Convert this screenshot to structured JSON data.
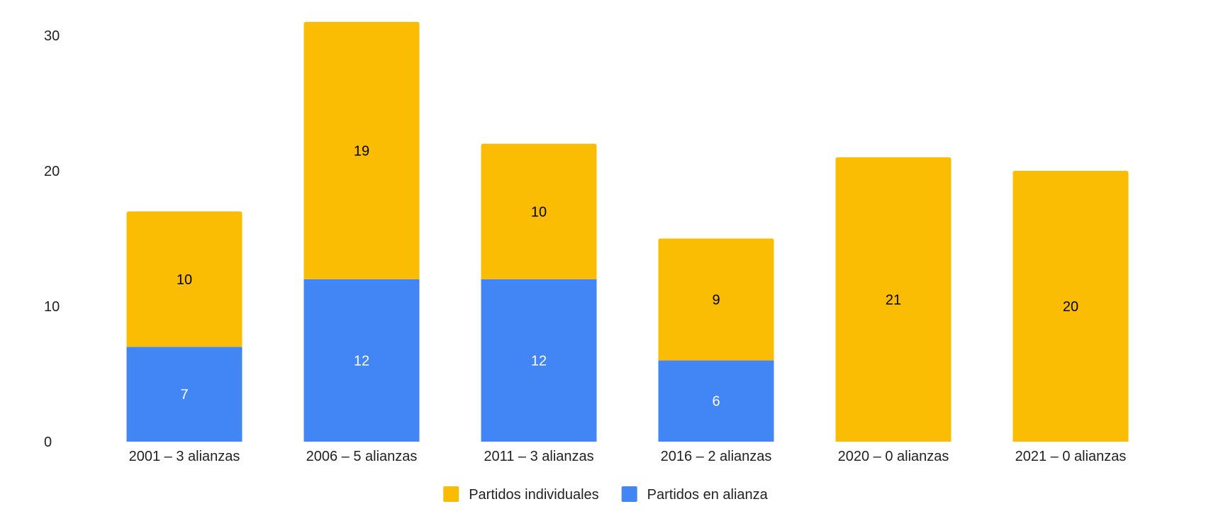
{
  "chart_data": {
    "type": "bar",
    "stacked": true,
    "title": "",
    "xlabel": "",
    "ylabel": "",
    "categories": [
      "2001 – 3 alianzas",
      "2006 – 5 alianzas",
      "2011 – 3 alianzas",
      "2016 – 2 alianzas",
      "2020 – 0 alianzas",
      "2021 – 0 alianzas"
    ],
    "series": [
      {
        "name": "Partidos en alianza",
        "color": "#4285F4",
        "label_color": "#ffffff",
        "values": [
          7,
          12,
          12,
          6,
          0,
          0
        ]
      },
      {
        "name": "Partidos individuales",
        "color": "#FBBC04",
        "label_color": "#000000",
        "values": [
          10,
          19,
          10,
          9,
          21,
          20
        ]
      }
    ],
    "ylim": [
      0,
      30
    ],
    "yticks": [
      0,
      10,
      20,
      30
    ],
    "grid": false,
    "legend_position": "bottom",
    "legend_order": [
      "Partidos individuales",
      "Partidos en alianza"
    ]
  }
}
